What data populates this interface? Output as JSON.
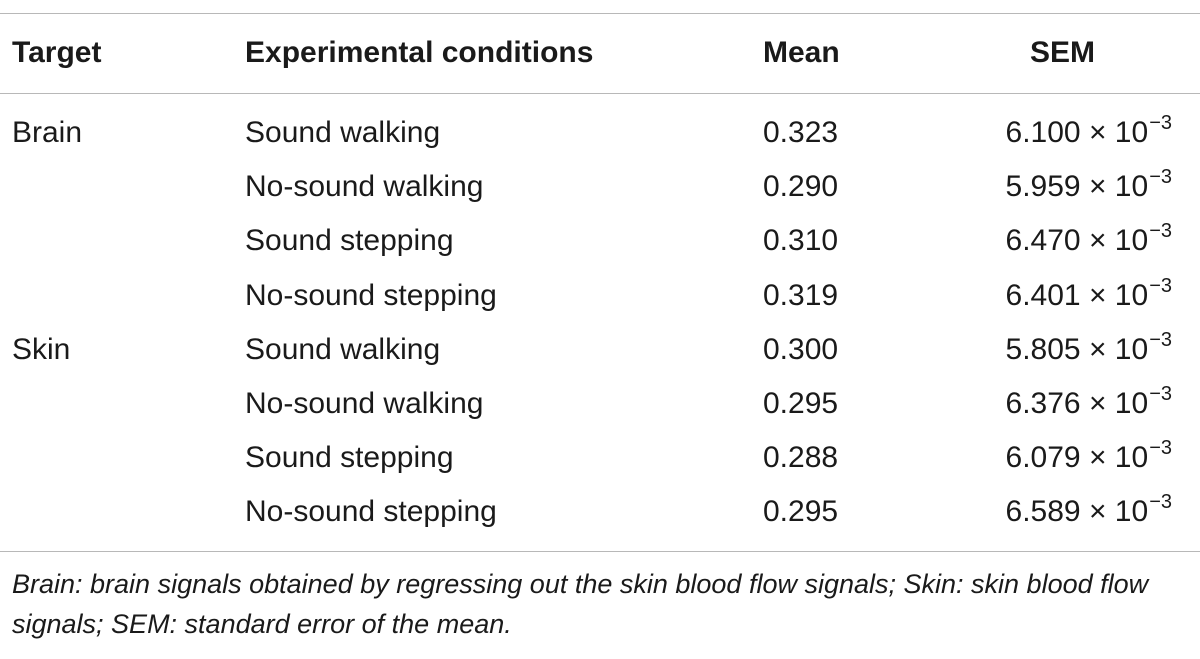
{
  "table": {
    "headers": {
      "target": "Target",
      "condition": "Experimental conditions",
      "mean": "Mean",
      "sem": "SEM"
    },
    "rows": [
      {
        "target": "Brain",
        "condition": "Sound walking",
        "mean": "0.323",
        "sem_mantissa": "6.100",
        "sem_times": "× 10",
        "sem_exponent": "−3"
      },
      {
        "target": "",
        "condition": "No-sound walking",
        "mean": "0.290",
        "sem_mantissa": "5.959",
        "sem_times": "× 10",
        "sem_exponent": "−3"
      },
      {
        "target": "",
        "condition": "Sound stepping",
        "mean": "0.310",
        "sem_mantissa": "6.470",
        "sem_times": "× 10",
        "sem_exponent": "−3"
      },
      {
        "target": "",
        "condition": "No-sound stepping",
        "mean": "0.319",
        "sem_mantissa": "6.401",
        "sem_times": "× 10",
        "sem_exponent": "−3"
      },
      {
        "target": "Skin",
        "condition": "Sound walking",
        "mean": "0.300",
        "sem_mantissa": "5.805",
        "sem_times": "× 10",
        "sem_exponent": "−3"
      },
      {
        "target": "",
        "condition": "No-sound walking",
        "mean": "0.295",
        "sem_mantissa": "6.376",
        "sem_times": "× 10",
        "sem_exponent": "−3"
      },
      {
        "target": "",
        "condition": "Sound stepping",
        "mean": "0.288",
        "sem_mantissa": "6.079",
        "sem_times": "× 10",
        "sem_exponent": "−3"
      },
      {
        "target": "",
        "condition": "No-sound stepping",
        "mean": "0.295",
        "sem_mantissa": "6.589",
        "sem_times": "× 10",
        "sem_exponent": "−3"
      }
    ]
  },
  "footnote": "Brain: brain signals obtained by regressing out the skin blood flow signals; Skin: skin blood flow signals; SEM: standard error of the mean."
}
